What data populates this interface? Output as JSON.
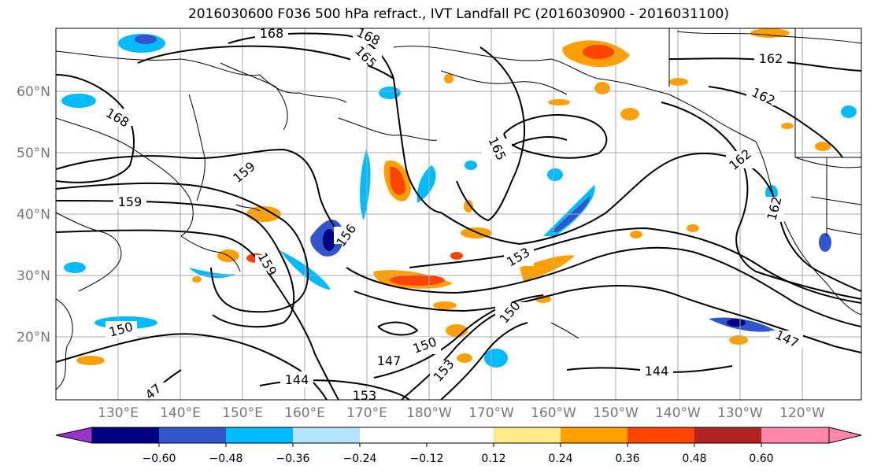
{
  "title": "2016030600 F036 500 hPa refract., IVT Landfall PC (2016030900 - 2016031100)",
  "lat_labels": [
    "20°N",
    "30°N",
    "40°N",
    "50°N",
    "60°N"
  ],
  "lon_labels": [
    "130°E",
    "140°E",
    "150°E",
    "160°E",
    "170°E",
    "180°W",
    "170°W",
    "160°W",
    "150°W",
    "140°W",
    "130°W",
    "120°W"
  ],
  "contour_labels": [
    "168",
    "168",
    "165",
    "162",
    "168",
    "162",
    "165",
    "162",
    "159",
    "159",
    "156",
    "153",
    "159",
    "150",
    "150",
    "150",
    "147",
    "147",
    "153",
    "144",
    "144",
    "153",
    "47",
    "162"
  ],
  "colorbar": {
    "tick_labels": [
      "−0.60",
      "−0.48",
      "−0.36",
      "−0.24",
      "−0.12",
      "0.12",
      "0.24",
      "0.36",
      "0.48",
      "0.60"
    ],
    "colors": [
      "#9933cc",
      "#000080",
      "#3355cc",
      "#00bbff",
      "#b3e5ff",
      "#ffffff",
      "#ffeb88",
      "#ffa000",
      "#ff4400",
      "#b22222",
      "#ff88aa"
    ]
  },
  "colors": {
    "land_outline": "#000000",
    "contour": "#000000",
    "grid": "#aaaaaa"
  }
}
